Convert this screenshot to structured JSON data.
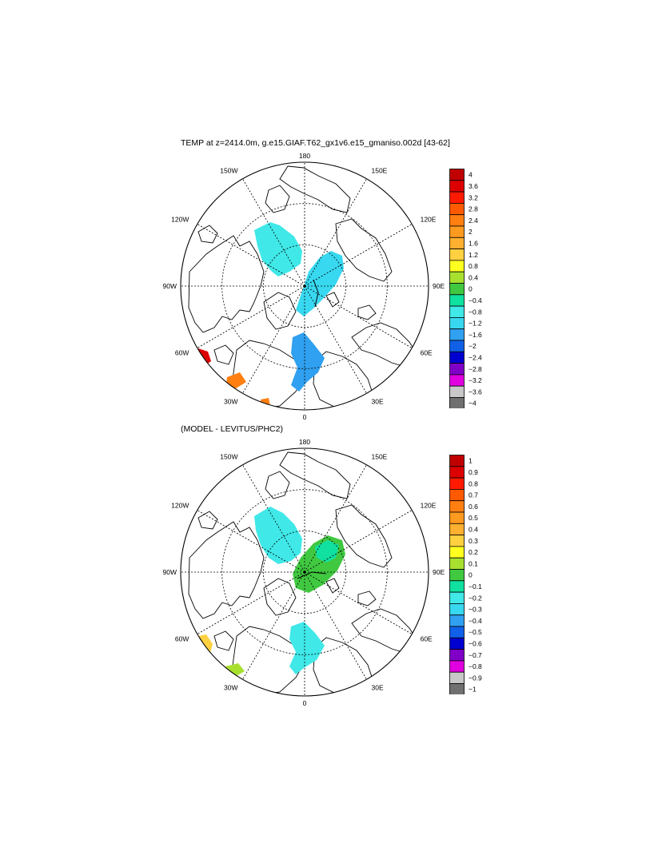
{
  "top_panel": {
    "title": "TEMP at z=2414.0m, g.e15.GIAF.T62_gx1v6.e15_gmaniso.002d [43-62]",
    "longitude_labels": [
      "180",
      "150E",
      "120E",
      "90E",
      "60E",
      "30E",
      "0",
      "30W",
      "60W",
      "90W",
      "120W",
      "150W"
    ],
    "colorbar": {
      "labels": [
        "4",
        "3.6",
        "3.2",
        "2.8",
        "2.4",
        "2",
        "1.6",
        "1.2",
        "0.8",
        "0.4",
        "0",
        "−0.4",
        "−0.8",
        "−1.2",
        "−1.6",
        "−2",
        "−2.4",
        "−2.8",
        "−3.2",
        "−3.6",
        "−4"
      ],
      "colors": [
        "#c00000",
        "#dc0000",
        "#ff1a00",
        "#ff5a00",
        "#ff7f10",
        "#ff9a20",
        "#ffb030",
        "#ffd040",
        "#ffff20",
        "#a8e030",
        "#40c840",
        "#10e0a0",
        "#40e8e8",
        "#38d8f0",
        "#30a0f0",
        "#1060e8",
        "#0000d0",
        "#8000c8",
        "#e000e0",
        "#c8c8c8",
        "#707070"
      ]
    }
  },
  "bottom_panel": {
    "title": "(MODEL - LEVITUS/PHC2)",
    "longitude_labels": [
      "180",
      "150E",
      "120E",
      "90E",
      "60E",
      "30E",
      "0",
      "30W",
      "60W",
      "90W",
      "120W",
      "150W"
    ],
    "colorbar": {
      "labels": [
        "1",
        "0.9",
        "0.8",
        "0.7",
        "0.6",
        "0.5",
        "0.4",
        "0.3",
        "0.2",
        "0.1",
        "0",
        "−0.1",
        "−0.2",
        "−0.3",
        "−0.4",
        "−0.5",
        "−0.6",
        "−0.7",
        "−0.8",
        "−0.9",
        "−1"
      ],
      "colors": [
        "#c00000",
        "#dc0000",
        "#ff1a00",
        "#ff5a00",
        "#ff7f10",
        "#ff9a20",
        "#ffb030",
        "#ffd040",
        "#ffff20",
        "#a8e030",
        "#40c840",
        "#10e0a0",
        "#40e8e8",
        "#38d8f0",
        "#30a0f0",
        "#1060e8",
        "#0000d0",
        "#8000c8",
        "#e000e0",
        "#c8c8c8",
        "#707070"
      ]
    }
  }
}
